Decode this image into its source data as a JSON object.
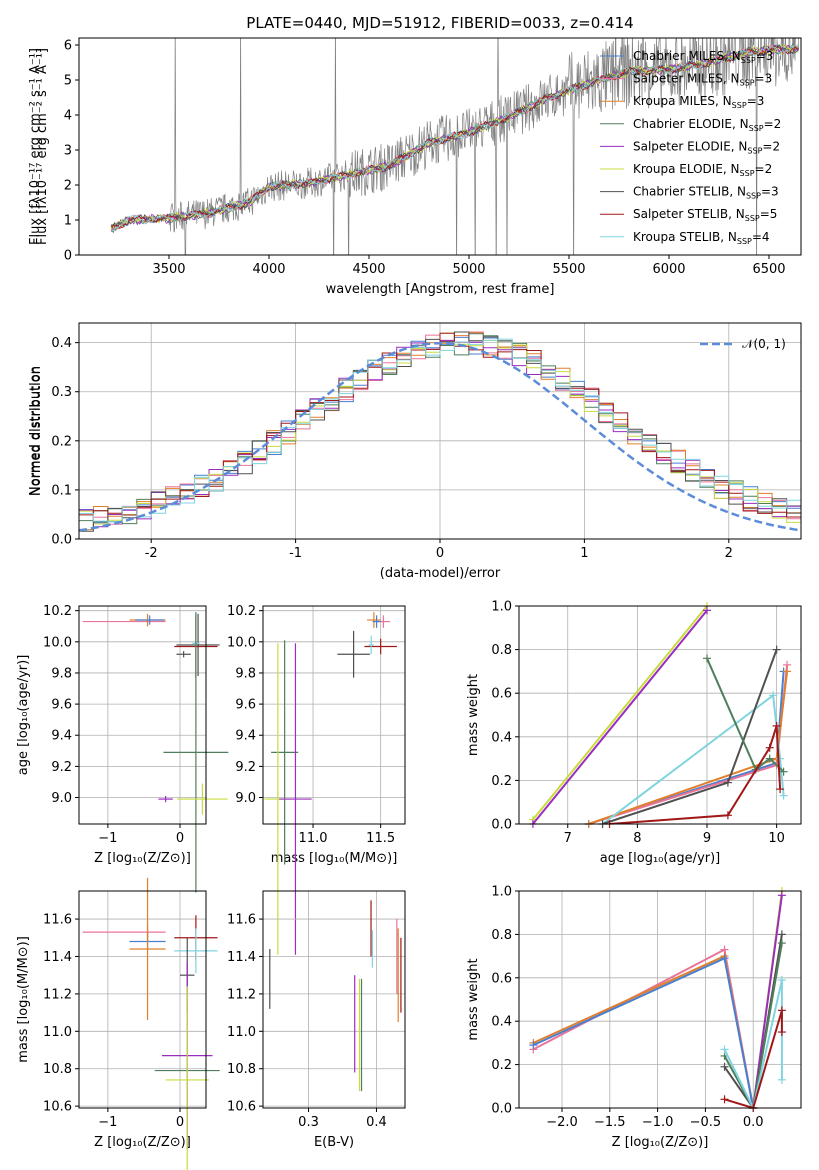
{
  "colors": {
    "chabrier_miles": "#4a7fd0",
    "salpeter_miles": "#e8749a",
    "kroupa_miles": "#e0802c",
    "chabrier_elodie": "#4f7f5a",
    "salpeter_elodie": "#9a2cc0",
    "kroupa_elodie": "#c8dc3c",
    "chabrier_stelib": "#505050",
    "salpeter_stelib": "#a01818",
    "kroupa_stelib": "#80d4e0",
    "spectrum": "#808080",
    "normal": "#5b8cd8"
  },
  "chart_data": [
    {
      "id": "spectrum",
      "type": "line",
      "title": "PLATE=0440, MJD=51912, FIBERID=0033, z=0.414",
      "xlabel": "wavelength [Angstrom, rest frame]",
      "ylabel": "Flux [fλ10⁻¹⁷ erg cm⁻² s⁻¹ A⁻¹]",
      "xlim": [
        3050,
        6660
      ],
      "ylim": [
        0,
        6.2
      ],
      "xticks": [
        3500,
        4000,
        4500,
        5000,
        5500,
        6000,
        6500
      ],
      "yticks": [
        0,
        1,
        2,
        3,
        4,
        5,
        6
      ],
      "continuum": [
        [
          3210,
          0.75
        ],
        [
          3300,
          1.0
        ],
        [
          3500,
          1.05
        ],
        [
          3700,
          1.2
        ],
        [
          3900,
          1.5
        ],
        [
          4000,
          1.95
        ],
        [
          4200,
          2.05
        ],
        [
          4400,
          2.3
        ],
        [
          4600,
          2.55
        ],
        [
          4800,
          3.2
        ],
        [
          5000,
          3.5
        ],
        [
          5200,
          3.95
        ],
        [
          5400,
          4.5
        ],
        [
          5600,
          4.9
        ],
        [
          5800,
          5.25
        ],
        [
          6000,
          5.3
        ],
        [
          6200,
          5.5
        ],
        [
          6400,
          5.8
        ],
        [
          6500,
          5.85
        ],
        [
          6650,
          5.9
        ]
      ],
      "legend": [
        {
          "label": "Chabrier MILES, N_SSP=3",
          "color_key": "chabrier_miles"
        },
        {
          "label": "Salpeter MILES, N_SSP=3",
          "color_key": "salpeter_miles"
        },
        {
          "label": "Kroupa MILES, N_SSP=3",
          "color_key": "kroupa_miles"
        },
        {
          "label": "Chabrier ELODIE, N_SSP=2",
          "color_key": "chabrier_elodie"
        },
        {
          "label": "Salpeter ELODIE, N_SSP=2",
          "color_key": "salpeter_elodie"
        },
        {
          "label": "Kroupa ELODIE, N_SSP=2",
          "color_key": "kroupa_elodie"
        },
        {
          "label": "Chabrier STELIB, N_SSP=3",
          "color_key": "chabrier_stelib"
        },
        {
          "label": "Salpeter STELIB, N_SSP=5",
          "color_key": "salpeter_stelib"
        },
        {
          "label": "Kroupa STELIB, N_SSP=4",
          "color_key": "kroupa_stelib"
        }
      ]
    },
    {
      "id": "residuals",
      "type": "line",
      "xlabel": "(data-model)/error",
      "ylabel": "Normed distribution",
      "xlim": [
        -2.5,
        2.5
      ],
      "ylim": [
        0,
        0.44
      ],
      "xticks": [
        -2,
        -1,
        0,
        1,
        2
      ],
      "yticks": [
        0.0,
        0.1,
        0.2,
        0.3,
        0.4
      ],
      "legend": [
        {
          "label": "𝒩(0, 1)",
          "color_key": "normal"
        }
      ],
      "grid": true
    },
    {
      "id": "age_vs_Z",
      "type": "scatter",
      "xlabel": "Z [log₁₀(Z/Z⊙)]",
      "ylabel": "age  [log₁₀(age/yr)]",
      "xlim": [
        -1.4,
        0.36
      ],
      "ylim": [
        8.83,
        10.23
      ],
      "xticks": [
        -1,
        0
      ],
      "yticks": [
        9.0,
        9.2,
        9.4,
        9.6,
        9.8,
        10.0,
        10.2
      ],
      "points": [
        {
          "k": "salpeter_miles",
          "x": -0.45,
          "y": 10.13,
          "xerr": [
            0.9,
            0.25
          ],
          "yerr": 0.03
        },
        {
          "k": "kroupa_miles",
          "x": -0.45,
          "y": 10.14,
          "xerr": 0.25,
          "yerr": 0.04
        },
        {
          "k": "chabrier_miles",
          "x": -0.42,
          "y": 10.14,
          "xerr": 0.2,
          "yerr": 0.03
        },
        {
          "k": "chabrier_stelib",
          "x": 0.25,
          "y": 9.98,
          "xerr": 0.3,
          "yerr": 0.2
        },
        {
          "k": "salpeter_stelib",
          "x": 0.22,
          "y": 9.97,
          "xerr": 0.3,
          "yerr": 0.2
        },
        {
          "k": "chabrier_stelib",
          "x": 0.05,
          "y": 9.92,
          "xerr": 0.1,
          "yerr": 0.02
        },
        {
          "k": "kroupa_stelib",
          "x": 0.22,
          "y": 9.99,
          "xerr": 0.05,
          "yerr": 0.2
        },
        {
          "k": "chabrier_elodie",
          "x": 0.22,
          "y": 9.29,
          "xerr": 0.45,
          "yerr": 0.9
        },
        {
          "k": "kroupa_elodie",
          "x": 0.31,
          "y": 8.99,
          "xerr": 0.35,
          "yerr": 0.1
        },
        {
          "k": "salpeter_elodie",
          "x": -0.2,
          "y": 8.99,
          "xerr": 0.1,
          "yerr": 0.02
        }
      ],
      "grid": true
    },
    {
      "id": "age_vs_mass",
      "type": "scatter",
      "xlabel": "mass [log₁₀(M/M⊙)]",
      "ylabel": "",
      "xlim": [
        10.63,
        11.68
      ],
      "ylim": [
        8.83,
        10.23
      ],
      "xticks": [
        11.0,
        11.5
      ],
      "yticks": [
        9.0,
        9.2,
        9.4,
        9.6,
        9.8,
        10.0,
        10.2
      ],
      "points": [
        {
          "k": "salpeter_miles",
          "x": 11.52,
          "y": 10.13,
          "xerr": 0.05,
          "yerr": 0.04
        },
        {
          "k": "kroupa_miles",
          "x": 11.45,
          "y": 10.14,
          "xerr": 0.05,
          "yerr": 0.05
        },
        {
          "k": "chabrier_miles",
          "x": 11.47,
          "y": 10.13,
          "xerr": 0.03,
          "yerr": 0.04
        },
        {
          "k": "chabrier_stelib",
          "x": 11.3,
          "y": 9.92,
          "xerr": 0.12,
          "yerr": 0.15
        },
        {
          "k": "salpeter_stelib",
          "x": 11.5,
          "y": 9.97,
          "xerr": 0.12,
          "yerr": 0.05
        },
        {
          "k": "kroupa_stelib",
          "x": 11.43,
          "y": 9.98,
          "xerr": 0.02,
          "yerr": 0.06
        },
        {
          "k": "chabrier_elodie",
          "x": 10.79,
          "y": 9.29,
          "xerr": 0.1,
          "yerr": 0.72
        },
        {
          "k": "kroupa_elodie",
          "x": 10.74,
          "y": 8.99,
          "xerr": 0.1,
          "yerr": 1.0
        },
        {
          "k": "salpeter_elodie",
          "x": 10.87,
          "y": 8.99,
          "xerr": 0.12,
          "yerr": 1.0
        }
      ],
      "grid": true
    },
    {
      "id": "weight_vs_age",
      "type": "line",
      "xlabel": "age  [log₁₀(age/yr)]",
      "ylabel": "mass weight",
      "xlim": [
        6.3,
        10.35
      ],
      "ylim": [
        0.0,
        1.0
      ],
      "xticks": [
        7,
        8,
        9,
        10
      ],
      "yticks": [
        0.0,
        0.2,
        0.4,
        0.6,
        0.8,
        1.0
      ],
      "lines": [
        {
          "k": "kroupa_elodie",
          "x": [
            6.5,
            9.0
          ],
          "y": [
            0.02,
            1.0
          ]
        },
        {
          "k": "salpeter_elodie",
          "x": [
            6.5,
            9.0
          ],
          "y": [
            0.0,
            0.98
          ]
        },
        {
          "k": "chabrier_miles",
          "x": [
            7.3,
            10.0,
            10.1
          ],
          "y": [
            0.0,
            0.28,
            0.7
          ]
        },
        {
          "k": "salpeter_miles",
          "x": [
            7.3,
            10.0,
            10.15
          ],
          "y": [
            0.0,
            0.27,
            0.73
          ]
        },
        {
          "k": "kroupa_miles",
          "x": [
            7.3,
            10.0,
            10.15
          ],
          "y": [
            0.0,
            0.3,
            0.7
          ]
        },
        {
          "k": "kroupa_stelib",
          "x": [
            7.5,
            9.95,
            10.05,
            10.1
          ],
          "y": [
            0.0,
            0.59,
            0.3,
            0.13
          ]
        },
        {
          "k": "chabrier_stelib",
          "x": [
            7.5,
            9.3,
            10.0
          ],
          "y": [
            0.0,
            0.19,
            0.8
          ]
        },
        {
          "k": "chabrier_elodie",
          "x": [
            9.0,
            9.7,
            9.9,
            10.1
          ],
          "y": [
            0.76,
            0.25,
            0.3,
            0.24
          ]
        },
        {
          "k": "salpeter_stelib",
          "x": [
            7.6,
            9.3,
            9.9,
            10.0,
            10.05
          ],
          "y": [
            0.0,
            0.04,
            0.35,
            0.45,
            0.16
          ]
        }
      ],
      "grid": true
    },
    {
      "id": "mass_vs_Z",
      "type": "scatter",
      "xlabel": "Z [log₁₀(Z/Z⊙)]",
      "ylabel": "mass [log₁₀(M/M⊙)]",
      "xlim": [
        -1.4,
        0.36
      ],
      "ylim": [
        10.59,
        11.75
      ],
      "xticks": [
        -1,
        0
      ],
      "yticks": [
        10.6,
        10.8,
        11.0,
        11.2,
        11.4,
        11.6
      ],
      "points": [
        {
          "k": "salpeter_miles",
          "x": -0.45,
          "y": 11.53,
          "xerr": [
            0.9,
            0.25
          ],
          "yerr": 0.05
        },
        {
          "k": "chabrier_miles",
          "x": -0.45,
          "y": 11.48,
          "xerr": 0.25,
          "yerr": 0.05
        },
        {
          "k": "kroupa_miles",
          "x": -0.45,
          "y": 11.44,
          "xerr": 0.25,
          "yerr": 0.38
        },
        {
          "k": "salpeter_stelib",
          "x": 0.22,
          "y": 11.5,
          "xerr": 0.3,
          "yerr": 0.12
        },
        {
          "k": "kroupa_stelib",
          "x": 0.22,
          "y": 11.43,
          "xerr": 0.3,
          "yerr": 0.12
        },
        {
          "k": "chabrier_stelib",
          "x": 0.1,
          "y": 11.3,
          "xerr": 0.1,
          "yerr": 0.2
        },
        {
          "k": "salpeter_elodie",
          "x": 0.1,
          "y": 10.87,
          "xerr": 0.35,
          "yerr": 0.5
        },
        {
          "k": "chabrier_elodie",
          "x": 0.1,
          "y": 10.79,
          "xerr": 0.45,
          "yerr": 0.0
        },
        {
          "k": "kroupa_elodie",
          "x": 0.1,
          "y": 10.74,
          "xerr": 0.3,
          "yerr": 0.5
        }
      ],
      "grid": true
    },
    {
      "id": "mass_vs_ebv",
      "type": "scatter",
      "xlabel": "E(B-V)",
      "ylabel": "",
      "xlim": [
        0.233,
        0.442
      ],
      "ylim": [
        10.59,
        11.75
      ],
      "xticks": [
        0.3,
        0.4
      ],
      "yticks": [
        10.6,
        10.8,
        11.0,
        11.2,
        11.4,
        11.6
      ],
      "points": [
        {
          "k": "chabrier_stelib",
          "x": 0.243,
          "y": 11.28,
          "yerr": 0.16
        },
        {
          "k": "salpeter_elodie",
          "x": 0.368,
          "y": 11.04,
          "yerr": 0.26
        },
        {
          "k": "kroupa_elodie",
          "x": 0.375,
          "y": 10.98,
          "yerr": 0.3
        },
        {
          "k": "chabrier_elodie",
          "x": 0.378,
          "y": 10.98,
          "yerr": 0.3
        },
        {
          "k": "salpeter_stelib",
          "x": 0.392,
          "y": 11.55,
          "yerr": 0.15
        },
        {
          "k": "kroupa_stelib",
          "x": 0.394,
          "y": 11.44,
          "yerr": 0.1
        },
        {
          "k": "kroupa_miles",
          "x": 0.432,
          "y": 11.3,
          "yerr": 0.25
        },
        {
          "k": "salpeter_miles",
          "x": 0.43,
          "y": 11.4,
          "yerr": 0.2
        },
        {
          "k": "salpeter_stelib",
          "x": 0.436,
          "y": 11.3,
          "yerr": 0.2
        }
      ],
      "grid": true
    },
    {
      "id": "weight_vs_Z",
      "type": "line",
      "xlabel": "Z [log₁₀(Z/Z⊙)]",
      "ylabel": "mass weight",
      "xlim": [
        -2.45,
        0.5
      ],
      "ylim": [
        0.0,
        1.0
      ],
      "xticks": [
        -2.0,
        -1.5,
        -1.0,
        -0.5,
        0.0
      ],
      "yticks": [
        0.0,
        0.2,
        0.4,
        0.6,
        0.8,
        1.0
      ],
      "lines": [
        {
          "k": "salpeter_miles",
          "x": [
            -2.3,
            -0.3,
            0.0
          ],
          "y": [
            0.27,
            0.73,
            0.0
          ]
        },
        {
          "k": "kroupa_miles",
          "x": [
            -2.3,
            -0.3,
            0.0
          ],
          "y": [
            0.3,
            0.7,
            0.0
          ]
        },
        {
          "k": "chabrier_miles",
          "x": [
            -2.3,
            -0.3,
            0.0
          ],
          "y": [
            0.29,
            0.69,
            0.0
          ]
        },
        {
          "k": "kroupa_elodie",
          "x": [
            0.0,
            0.3
          ],
          "y": [
            0.0,
            1.0
          ]
        },
        {
          "k": "salpeter_elodie",
          "x": [
            0.0,
            0.3
          ],
          "y": [
            0.0,
            0.98
          ]
        },
        {
          "k": "chabrier_stelib",
          "x": [
            -0.3,
            0.0,
            0.3
          ],
          "y": [
            0.19,
            0.0,
            0.8
          ]
        },
        {
          "k": "chabrier_elodie",
          "x": [
            -0.3,
            0.0,
            0.3
          ],
          "y": [
            0.24,
            0.0,
            0.76
          ]
        },
        {
          "k": "kroupa_stelib",
          "x": [
            -0.3,
            0.0,
            0.3,
            0.3
          ],
          "y": [
            0.27,
            0.0,
            0.59,
            0.13
          ]
        },
        {
          "k": "salpeter_stelib",
          "x": [
            -0.3,
            0.0,
            0.3,
            0.3
          ],
          "y": [
            0.04,
            0.0,
            0.45,
            0.35
          ]
        }
      ],
      "grid": true
    }
  ]
}
